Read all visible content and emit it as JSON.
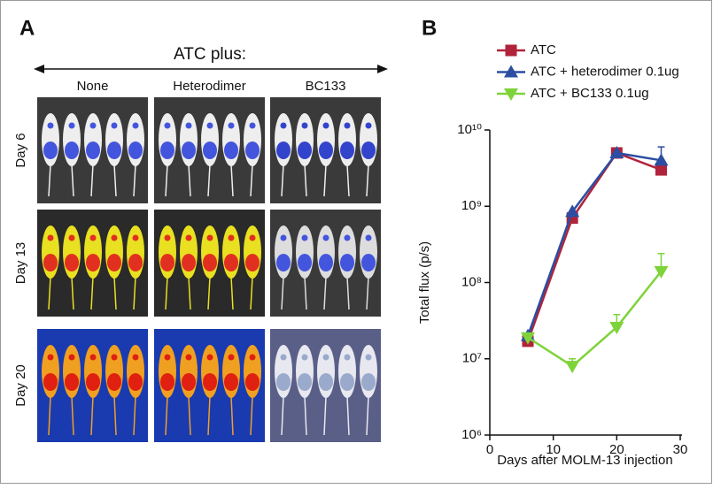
{
  "panel_a": {
    "label": "A",
    "title": "ATC plus:",
    "columns": [
      "None",
      "Heterodimer",
      "BC133"
    ],
    "rows": [
      "Day 6",
      "Day 13",
      "Day 20"
    ]
  },
  "chart_data": {
    "type": "line",
    "panel_label": "B",
    "x_label": "Days after MOLM-13 injection",
    "y_label": "Total flux (p/s)",
    "x": [
      6,
      13,
      20,
      27
    ],
    "series": [
      {
        "name": "ATC",
        "color": "#b0233a",
        "marker": "square",
        "values": [
          17000000,
          700000000,
          5000000000,
          3000000000
        ],
        "errors": [
          null,
          null,
          null,
          null
        ]
      },
      {
        "name": "ATC + heterodimer 0.1ug",
        "color": "#2b4ea2",
        "marker": "triangle-up",
        "values": [
          20000000,
          850000000,
          5000000000,
          4000000000
        ],
        "errors": [
          null,
          null,
          null,
          2000000000
        ]
      },
      {
        "name": "ATC + BC133 0.1ug",
        "color": "#7ed33a",
        "marker": "triangle-down",
        "values": [
          19000000,
          8000000,
          26000000,
          140000000
        ],
        "errors": [
          null,
          2000000,
          12000000,
          100000000
        ]
      }
    ],
    "xlim": [
      0,
      30
    ],
    "xticks": [
      0,
      10,
      20,
      30
    ],
    "ylim": [
      1000000,
      10000000000
    ],
    "log_y": true,
    "yticks": [
      {
        "value": 1000000,
        "label": "10⁶"
      },
      {
        "value": 10000000,
        "label": "10⁷"
      },
      {
        "value": 100000000,
        "label": "10⁸"
      },
      {
        "value": 1000000000,
        "label": "10⁹"
      },
      {
        "value": 10000000000,
        "label": "10¹⁰"
      }
    ],
    "legend": "top-left"
  }
}
